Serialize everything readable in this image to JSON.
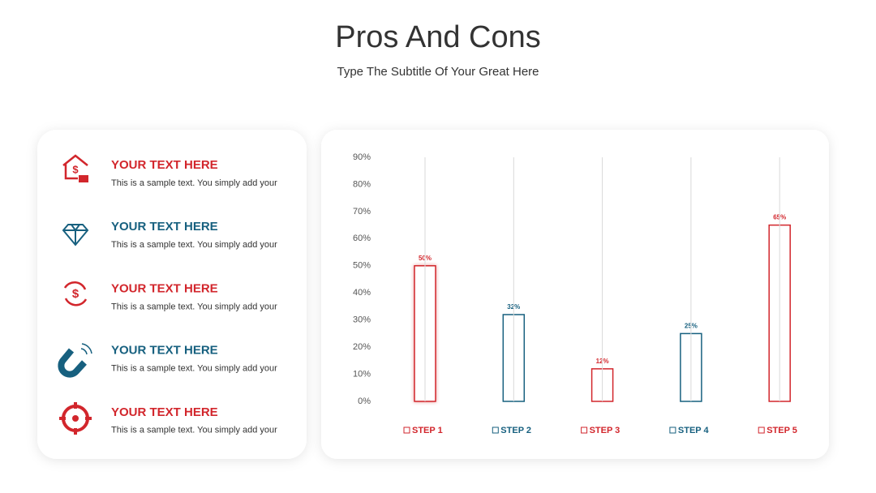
{
  "header": {
    "title": "Pros And Cons",
    "subtitle": "Type The Subtitle Of Your Great Here"
  },
  "items": [
    {
      "title": "YOUR TEXT HERE",
      "text": "This is a sample text. You simply add your",
      "color": "#d2262c"
    },
    {
      "title": "YOUR TEXT HERE",
      "text": "This is a sample text. You simply add your",
      "color": "#17607f"
    },
    {
      "title": "YOUR TEXT HERE",
      "text": "This is a sample text. You simply add your",
      "color": "#d2262c"
    },
    {
      "title": "YOUR TEXT HERE",
      "text": "This is a sample text. You simply add your",
      "color": "#17607f"
    },
    {
      "title": "YOUR TEXT HERE",
      "text": "This is a sample text. You simply add your",
      "color": "#d2262c"
    }
  ],
  "chart_data": {
    "type": "bar",
    "categories": [
      "STEP 1",
      "STEP 2",
      "STEP 3",
      "STEP 4",
      "STEP 5"
    ],
    "values": [
      50,
      32,
      12,
      25,
      65
    ],
    "value_labels": [
      "50%",
      "32%",
      "12%",
      "25%",
      "65%"
    ],
    "colors": [
      "#d2262c",
      "#17607f",
      "#d2262c",
      "#17607f",
      "#d2262c"
    ],
    "ylim": [
      0,
      90
    ],
    "yticks": [
      {
        "value": 0,
        "label": "0%"
      },
      {
        "value": 10,
        "label": "10%"
      },
      {
        "value": 20,
        "label": "20%"
      },
      {
        "value": 30,
        "label": "30%"
      },
      {
        "value": 40,
        "label": "40%"
      },
      {
        "value": 50,
        "label": "50%"
      },
      {
        "value": 60,
        "label": "60%"
      },
      {
        "value": 70,
        "label": "70%"
      },
      {
        "value": 80,
        "label": "80%"
      },
      {
        "value": 90,
        "label": "90%"
      }
    ],
    "grid": true
  }
}
